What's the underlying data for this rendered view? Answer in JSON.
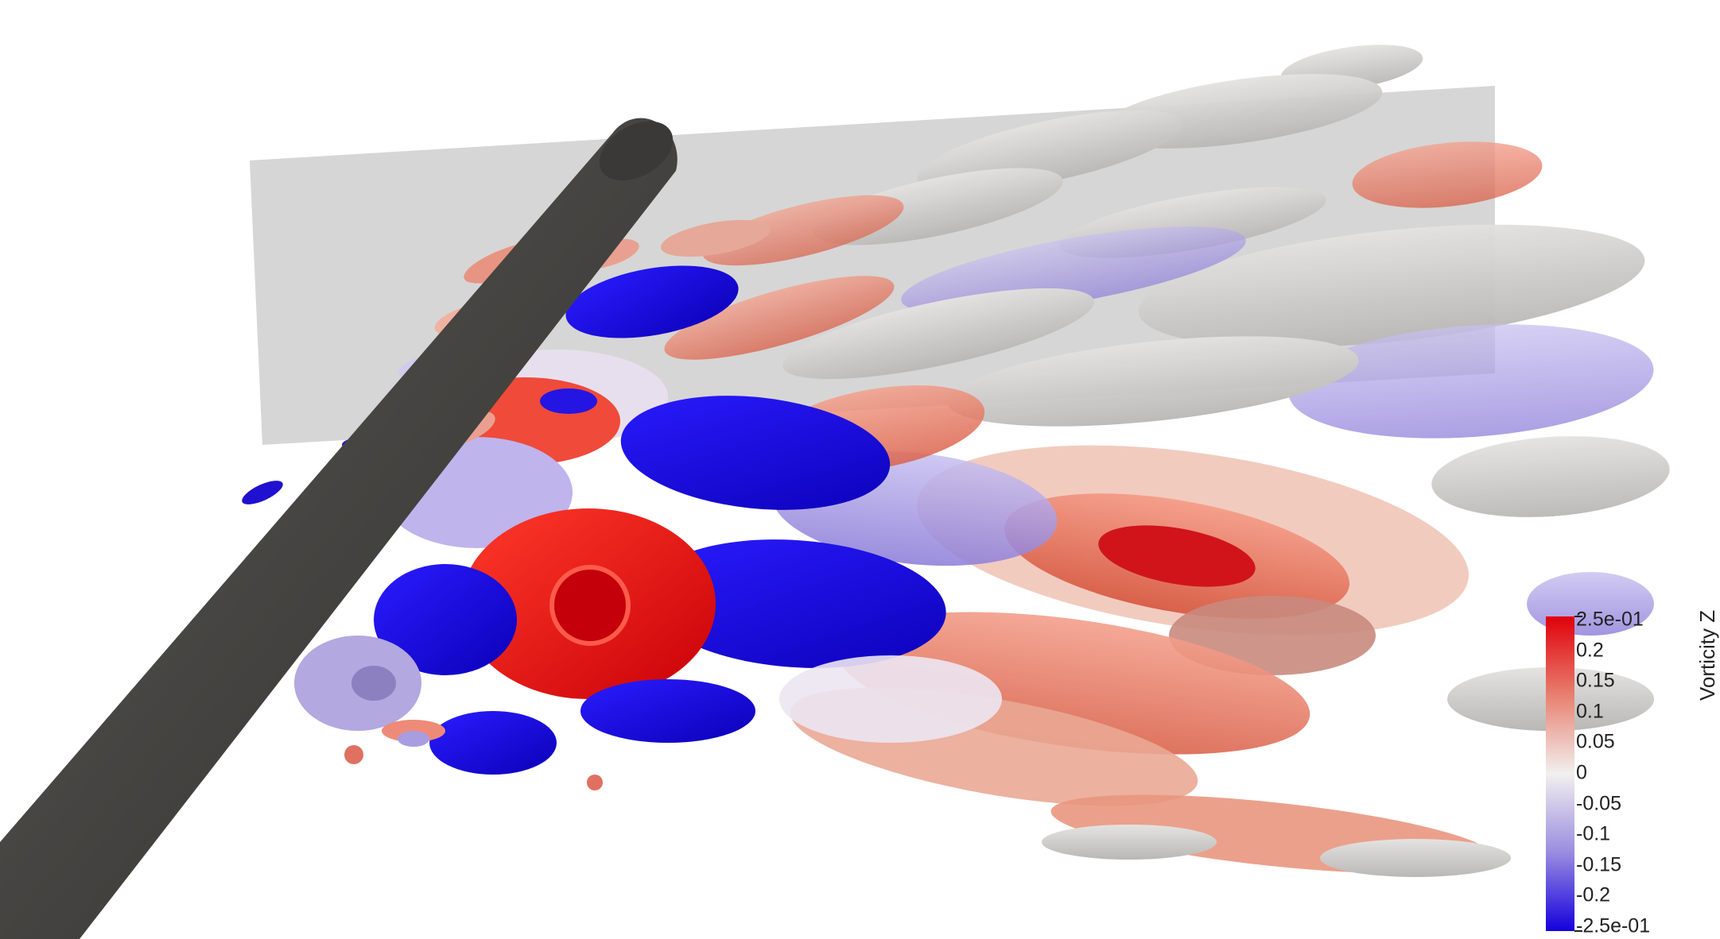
{
  "colorbar": {
    "title": "Vorticity Z",
    "ticks": [
      "2.5e-01",
      "0.2",
      "0.15",
      "0.1",
      "0.05",
      "0",
      "-0.05",
      "-0.1",
      "-0.15",
      "-0.2",
      "-2.5e-01"
    ],
    "range": [
      -0.25,
      0.25
    ],
    "colors": {
      "max": "#e0000a",
      "mid": "#f2f0ef",
      "min": "#1400dc"
    }
  }
}
